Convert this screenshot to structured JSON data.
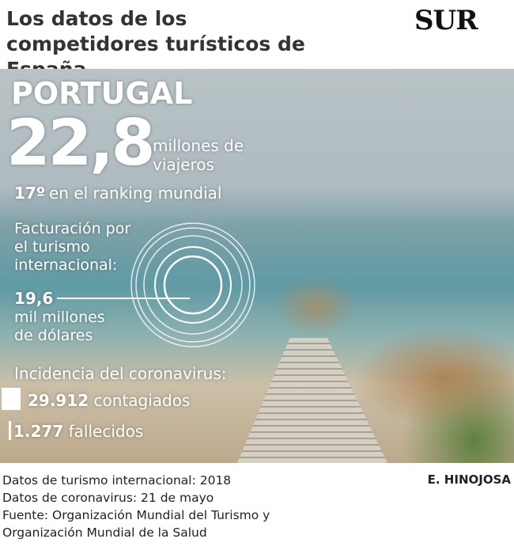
{
  "header": {
    "title": "Los datos de los competidores turísticos de España",
    "logo": "SUR"
  },
  "country": "PORTUGAL",
  "travelers": {
    "value": "22,8",
    "unit": "millones de viajeros"
  },
  "ranking": {
    "value": "17º",
    "text": "en el ranking mundial"
  },
  "revenue": {
    "label": "Facturación por el turismo internacional:",
    "value": "19,6",
    "unit": "mil millones de dólares"
  },
  "coronavirus": {
    "heading": "Incidencia del coronavirus:",
    "cases": {
      "value": "29.912",
      "label": "contagiados"
    },
    "deaths": {
      "value": "1.277",
      "label": "fallecidos"
    }
  },
  "footer": {
    "notes": [
      "Datos de turismo internacional: 2018",
      "Datos de coronavirus: 21 de mayo",
      "Fuente: Organización Mundial del Turismo y",
      "Organización Mundial de la Salud"
    ],
    "credit": "E. HINOJOSA"
  }
}
